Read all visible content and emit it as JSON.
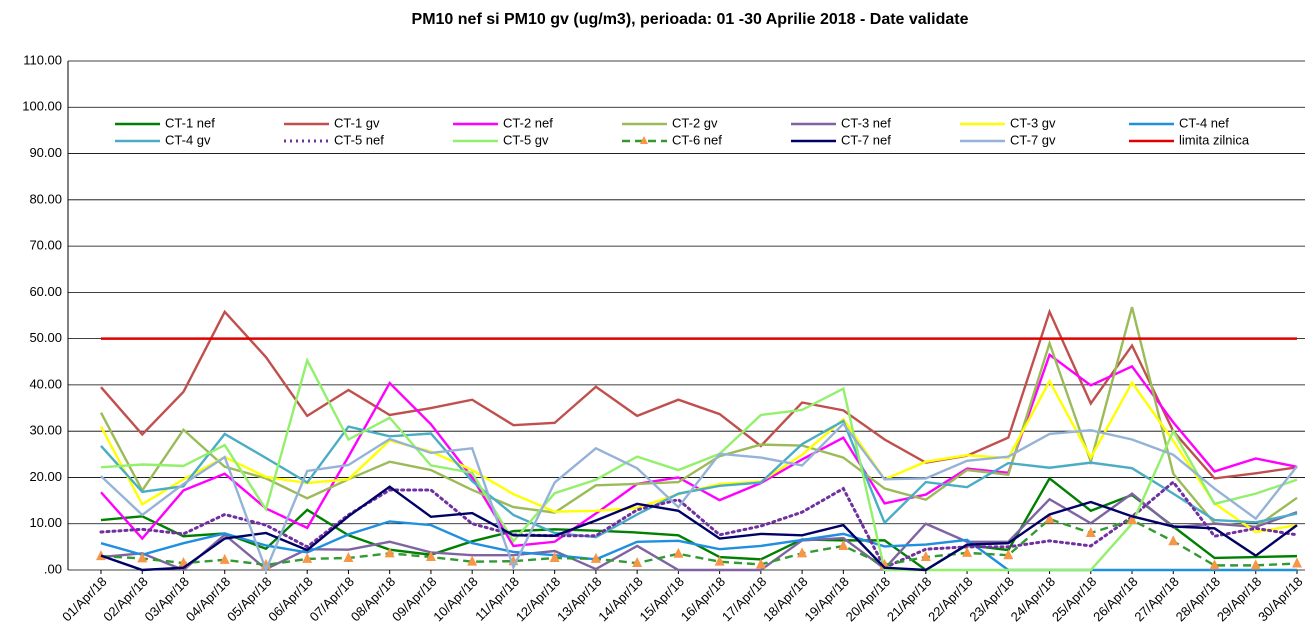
{
  "chart_data": {
    "type": "line",
    "title": "PM10 nef si PM10 gv (ug/m3), perioada: 01 -30 Aprilie 2018 - Date validate",
    "categories": [
      "01/Apr/18",
      "02/Apr/18",
      "03/Apr/18",
      "04/Apr/18",
      "05/Apr/18",
      "06/Apr/18",
      "07/Apr/18",
      "08/Apr/18",
      "09/Apr/18",
      "10/Apr/18",
      "11/Apr/18",
      "12/Apr/18",
      "13/Apr/18",
      "14/Apr/18",
      "15/Apr/18",
      "16/Apr/18",
      "17/Apr/18",
      "18/Apr/18",
      "19/Apr/18",
      "20/Apr/18",
      "21/Apr/18",
      "22/Apr/18",
      "23/Apr/18",
      "24/Apr/18",
      "25/Apr/18",
      "26/Apr/18",
      "27/Apr/18",
      "28/Apr/18",
      "29/Apr/18",
      "30/Apr/18"
    ],
    "ylim": [
      0,
      110
    ],
    "yticks": [
      {
        "value": 0,
        "label": ".00"
      },
      {
        "value": 10,
        "label": "10.00"
      },
      {
        "value": 20,
        "label": "20.00"
      },
      {
        "value": 30,
        "label": "30.00"
      },
      {
        "value": 40,
        "label": "40.00"
      },
      {
        "value": 50,
        "label": "50.00"
      },
      {
        "value": 60,
        "label": "60.00"
      },
      {
        "value": 70,
        "label": "70.00"
      },
      {
        "value": 80,
        "label": "80.00"
      },
      {
        "value": 90,
        "label": "90.00"
      },
      {
        "value": 100,
        "label": "100.00"
      },
      {
        "value": 110,
        "label": "110.00"
      }
    ],
    "grid": true,
    "series": [
      {
        "name": "CT-1 nef",
        "color": "#008000",
        "values": [
          10.8,
          11.6,
          7.3,
          7.9,
          4.6,
          13,
          7.5,
          4.4,
          3.3,
          6.2,
          8.4,
          8.8,
          8.5,
          8.1,
          7.5,
          2.8,
          2.3,
          6.6,
          6.4,
          6.4,
          0,
          5.4,
          4.3,
          19.8,
          12.8,
          16.2,
          9.4,
          2.6,
          2.8,
          3.0
        ]
      },
      {
        "name": "CT-1 gv",
        "color": "#c0504d",
        "values": [
          39.5,
          29.3,
          38.5,
          55.8,
          46,
          33.3,
          38.9,
          33.5,
          35,
          36.8,
          31.3,
          31.8,
          39.6,
          33.3,
          36.8,
          33.7,
          26.8,
          36.2,
          34.5,
          28.2,
          23.2,
          24.7,
          28.6,
          55.8,
          36,
          48.5,
          30,
          19.8,
          20.9,
          22.2
        ]
      },
      {
        "name": "CT-2 nef",
        "color": "#ff00ff",
        "values": [
          16.8,
          6.8,
          17.2,
          20.8,
          13.3,
          9.1,
          24.5,
          40.4,
          31.5,
          20,
          5.2,
          6.1,
          12.2,
          18.6,
          20,
          15.1,
          18.8,
          23.9,
          28.6,
          14.4,
          16.3,
          21.9,
          21,
          46.5,
          39.9,
          44,
          31.9,
          21.3,
          24.1,
          22.3
        ]
      },
      {
        "name": "CT-2 gv",
        "color": "#9bbb59",
        "values": [
          34,
          17.2,
          30.3,
          22.3,
          19.8,
          15.5,
          19.6,
          23.4,
          21.6,
          17.3,
          13.6,
          12.4,
          18.3,
          18.6,
          19,
          24.6,
          27.1,
          26.9,
          24.3,
          17.6,
          15.2,
          21.6,
          20.6,
          49,
          23.4,
          56.8,
          20.8,
          10.1,
          9.3,
          15.6
        ]
      },
      {
        "name": "CT-3 nef",
        "color": "#8064a2",
        "values": [
          2.8,
          3.6,
          0,
          7.6,
          0.2,
          4.5,
          4.4,
          6.1,
          3.8,
          3.2,
          3.2,
          4.1,
          0.2,
          5.2,
          0,
          0,
          0,
          6.4,
          6.9,
          0.3,
          10,
          6.1,
          6.1,
          15.3,
          10.1,
          16.5,
          9.2,
          10,
          9.3,
          12.5
        ]
      },
      {
        "name": "CT-3 gv",
        "color": "#ffff00",
        "values": [
          31,
          14.2,
          19.6,
          24.4,
          20.1,
          18.8,
          19.6,
          28,
          25.6,
          21.6,
          16.4,
          12.6,
          12.8,
          13.4,
          16.4,
          18.6,
          19.1,
          24.9,
          32.6,
          19.6,
          23.4,
          24.8,
          24.2,
          40.8,
          24.3,
          40.5,
          27.9,
          14.4,
          8.2,
          9.7
        ]
      },
      {
        "name": "CT-4 nef",
        "color": "#1f8fe0",
        "values": [
          5.8,
          3.3,
          5.8,
          7.9,
          5.3,
          3.8,
          7.7,
          10.5,
          9.7,
          5.8,
          3.9,
          3.2,
          2.3,
          6.1,
          6.3,
          4.5,
          5.2,
          6.5,
          7.8,
          5.1,
          5.5,
          6.5,
          0,
          0,
          0,
          0,
          0,
          0,
          0,
          0
        ]
      },
      {
        "name": "CT-4 gv",
        "color": "#4bacc6",
        "values": [
          26.8,
          16.9,
          18.1,
          29.4,
          24.2,
          18.9,
          31,
          28.9,
          29.5,
          19.2,
          11.9,
          8,
          7.1,
          12,
          16.5,
          18.2,
          18.9,
          27.2,
          32.2,
          10.2,
          19,
          17.9,
          23.1,
          22.1,
          23.2,
          22,
          16.5,
          10.8,
          10.3,
          12.2
        ]
      },
      {
        "name": "CT-5 nef",
        "color": "#7030a0",
        "style": "dotted",
        "values": [
          8.2,
          8.8,
          7.8,
          12,
          9.7,
          5,
          11.9,
          17.3,
          17.3,
          10,
          7.6,
          7.4,
          7.4,
          13,
          15.2,
          7.6,
          9.5,
          12.5,
          17.6,
          0.5,
          4.5,
          5,
          5,
          6.3,
          5.2,
          11.5,
          19,
          7.3,
          9,
          7.6
        ]
      },
      {
        "name": "CT-5 gv",
        "color": "#92f06c",
        "values": [
          22.2,
          22.8,
          22.5,
          27,
          13.1,
          45.3,
          28.2,
          32.9,
          22.6,
          21,
          6.2,
          16.6,
          19.5,
          24.5,
          21.6,
          25.1,
          33.5,
          34.6,
          39.2,
          0,
          0,
          0,
          0,
          0,
          0,
          10,
          30,
          14.3,
          16.5,
          19.5
        ]
      },
      {
        "name": "CT-6 nef",
        "color": "#339933",
        "style": "dashed",
        "marker": "triangle",
        "marker_color": "#f79646",
        "values": [
          3,
          2.5,
          1.5,
          2.2,
          1.1,
          2.4,
          2.6,
          3.6,
          2.8,
          1.8,
          1.9,
          2.6,
          2.4,
          1.5,
          3.5,
          1.8,
          1.2,
          3.6,
          5.2,
          1.1,
          2.8,
          3.7,
          3.2,
          11,
          8,
          10.8,
          6.2,
          1,
          1,
          1.4
        ]
      },
      {
        "name": "CT-7 nef",
        "color": "#000066",
        "values": [
          3.1,
          0,
          0.5,
          6.8,
          8,
          4.3,
          11.6,
          18,
          11.5,
          12.3,
          7.5,
          7.4,
          10.7,
          14.3,
          12.8,
          6.8,
          7.8,
          7.5,
          9.7,
          0.5,
          0,
          5.5,
          5.8,
          12,
          14.7,
          11.6,
          9.4,
          9,
          3.1,
          9.7
        ]
      },
      {
        "name": "CT-7 gv",
        "color": "#95b3d7",
        "values": [
          20.3,
          11.9,
          18.6,
          24.4,
          0,
          21.4,
          22.7,
          28.3,
          25.3,
          26.3,
          0.6,
          18.9,
          26.3,
          22,
          13.6,
          25.1,
          24.3,
          22.6,
          31.6,
          19.6,
          19.8,
          23.6,
          24.5,
          29.4,
          30.2,
          28.2,
          24.9,
          17.6,
          11.1,
          22.4
        ]
      },
      {
        "name": "limita zilnica",
        "color": "#e00000",
        "values": [
          50,
          50,
          50,
          50,
          50,
          50,
          50,
          50,
          50,
          50,
          50,
          50,
          50,
          50,
          50,
          50,
          50,
          50,
          50,
          50,
          50,
          50,
          50,
          50,
          50,
          50,
          50,
          50,
          50,
          50
        ]
      }
    ]
  }
}
